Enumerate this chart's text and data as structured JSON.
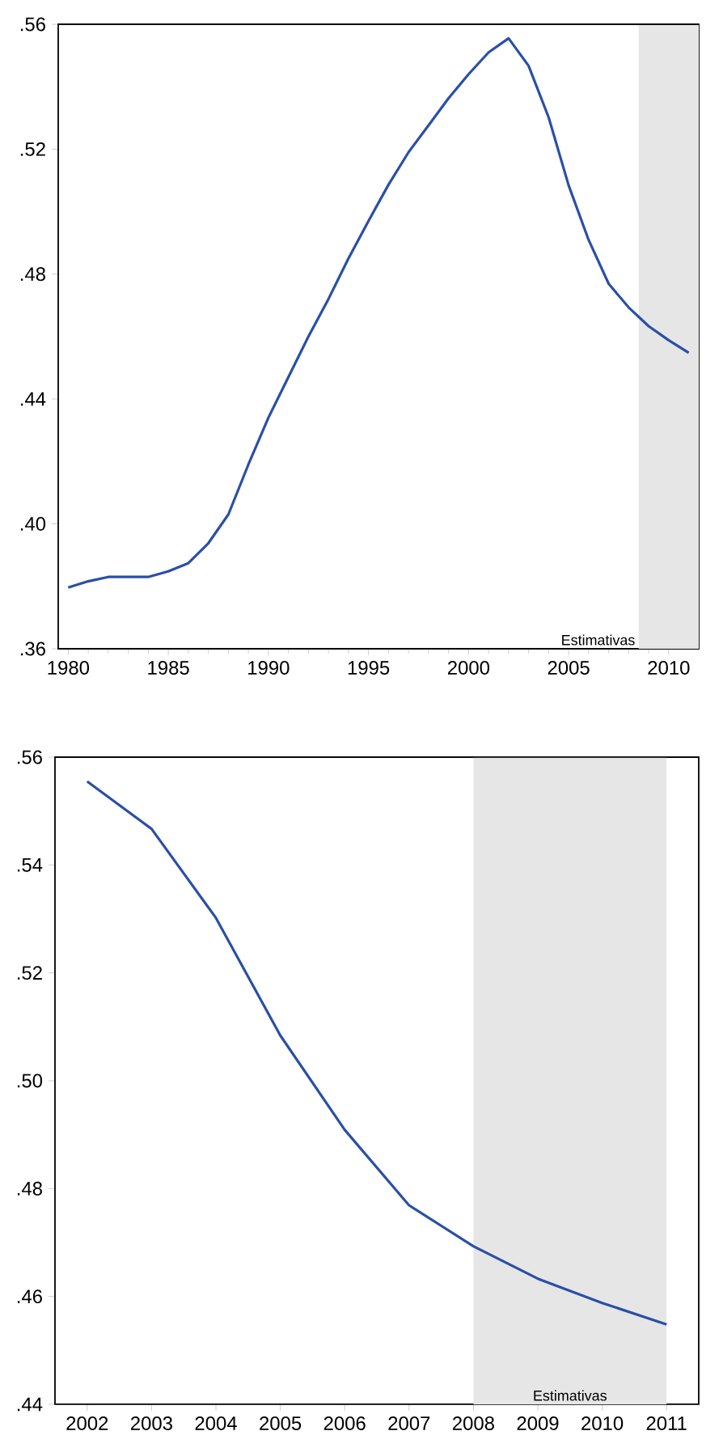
{
  "chart_data": [
    {
      "type": "line",
      "x": [
        1980,
        1981,
        1982,
        1983,
        1984,
        1985,
        1986,
        1987,
        1988,
        1989,
        1990,
        1991,
        1992,
        1993,
        1994,
        1995,
        1996,
        1997,
        1998,
        1999,
        2000,
        2001,
        2002,
        2003,
        2004,
        2005,
        2006,
        2007,
        2008,
        2009,
        2010,
        2011
      ],
      "series": [
        {
          "color": "#2a4fa8",
          "values": [
            0.3796,
            0.3816,
            0.383,
            0.383,
            0.383,
            0.3848,
            0.3874,
            0.3938,
            0.403,
            0.419,
            0.434,
            0.447,
            0.46,
            0.472,
            0.485,
            0.497,
            0.5086,
            0.519,
            0.5276,
            0.5363,
            0.544,
            0.551,
            0.5555,
            0.5467,
            0.5302,
            0.5084,
            0.4909,
            0.4769,
            0.4693,
            0.4633,
            0.4588,
            0.4548
          ]
        }
      ],
      "xlim": [
        1979.5,
        2011.5
      ],
      "ylim": [
        0.36,
        0.56
      ],
      "xticks": [
        1980,
        1985,
        1990,
        1995,
        2000,
        2005,
        2010
      ],
      "yticks": [
        {
          "value": 0.36,
          "label": ".36"
        },
        {
          "value": 0.4,
          "label": ".40"
        },
        {
          "value": 0.44,
          "label": ".44"
        },
        {
          "value": 0.48,
          "label": ".48"
        },
        {
          "value": 0.52,
          "label": ".52"
        },
        {
          "value": 0.56,
          "label": ".56"
        }
      ],
      "bands": [
        {
          "axis": "x",
          "from": 2008.5,
          "to": 2011.5,
          "label": "Estimativas",
          "color": "#e6e6e6"
        }
      ],
      "grid": false,
      "marker": "none",
      "line_style": "solid"
    },
    {
      "type": "line",
      "x": [
        2002,
        2003,
        2004,
        2005,
        2006,
        2007,
        2008,
        2009,
        2010,
        2011
      ],
      "series": [
        {
          "color": "#2a4fa8",
          "values": [
            0.5555,
            0.5467,
            0.5302,
            0.5084,
            0.4909,
            0.4769,
            0.4693,
            0.4633,
            0.4588,
            0.4548
          ]
        }
      ],
      "xlim": [
        2001.5,
        2011.5
      ],
      "ylim": [
        0.44,
        0.56
      ],
      "xticks": [
        2002,
        2003,
        2004,
        2005,
        2006,
        2007,
        2008,
        2009,
        2010,
        2011
      ],
      "yticks": [
        {
          "value": 0.44,
          "label": ".44"
        },
        {
          "value": 0.46,
          "label": ".46"
        },
        {
          "value": 0.48,
          "label": ".48"
        },
        {
          "value": 0.5,
          "label": ".50"
        },
        {
          "value": 0.52,
          "label": ".52"
        },
        {
          "value": 0.54,
          "label": ".54"
        },
        {
          "value": 0.56,
          "label": ".56"
        }
      ],
      "bands": [
        {
          "axis": "x",
          "from": 2008,
          "to": 2011,
          "label": "Estimativas",
          "color": "#e6e6e6"
        }
      ],
      "grid": false,
      "marker": "none",
      "line_style": "solid"
    }
  ]
}
